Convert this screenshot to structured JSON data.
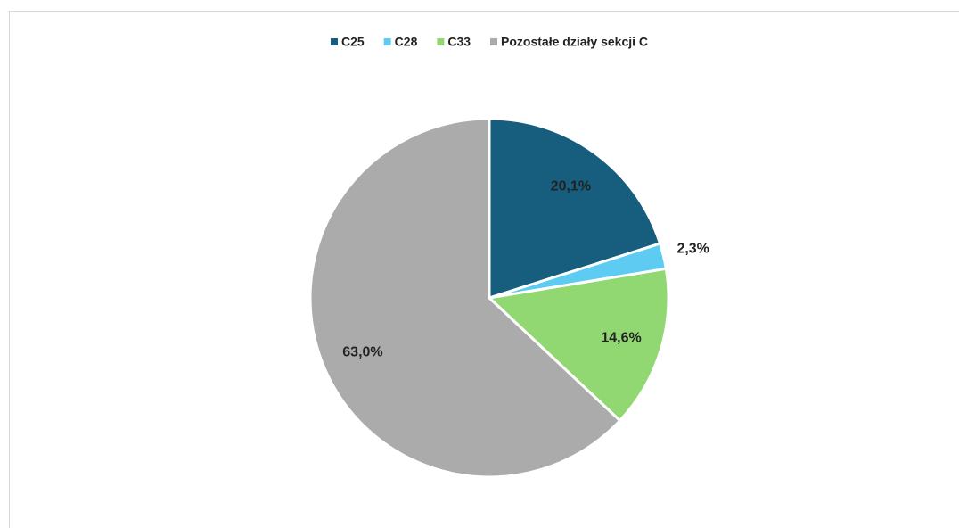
{
  "chart_data": {
    "type": "pie",
    "categories": [
      "C25",
      "C28",
      "C33",
      "Pozostałe działy sekcji C"
    ],
    "values": [
      20.1,
      2.3,
      14.6,
      63.0
    ],
    "value_labels": [
      "20,1%",
      "2,3%",
      "14,6%",
      "63,0%"
    ],
    "colors": [
      "#175e7e",
      "#5ecbf2",
      "#92d872",
      "#ababab"
    ],
    "legend": "top"
  }
}
